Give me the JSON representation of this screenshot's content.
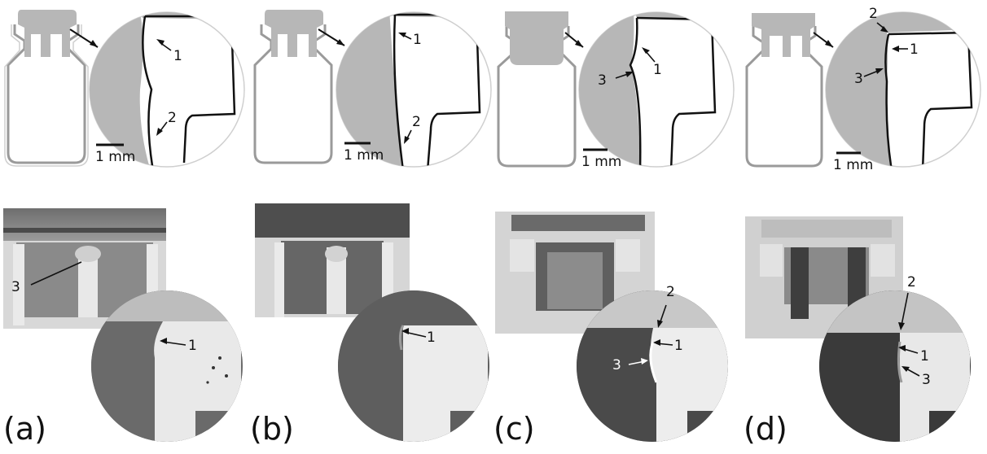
{
  "figure": {
    "panels": [
      {
        "label": "(a)",
        "scale_bar": "1 mm",
        "top_callouts": [
          "1",
          "2"
        ],
        "photo_callouts": [
          "3",
          "1"
        ]
      },
      {
        "label": "(b)",
        "scale_bar": "1 mm",
        "top_callouts": [
          "1",
          "2"
        ],
        "photo_callouts": [
          "1"
        ]
      },
      {
        "label": "(c)",
        "scale_bar": "1 mm",
        "top_callouts": [
          "1",
          "3"
        ],
        "photo_callouts": [
          "2",
          "1",
          "3"
        ]
      },
      {
        "label": "(d)",
        "scale_bar": "1 mm",
        "top_callouts": [
          "2",
          "1",
          "3"
        ],
        "photo_callouts": [
          "2",
          "1",
          "3"
        ]
      }
    ]
  },
  "colors": {
    "rubber_gray": "#b7b7b7",
    "outline": "#111111",
    "vial_outline": "#9a9a9a"
  }
}
